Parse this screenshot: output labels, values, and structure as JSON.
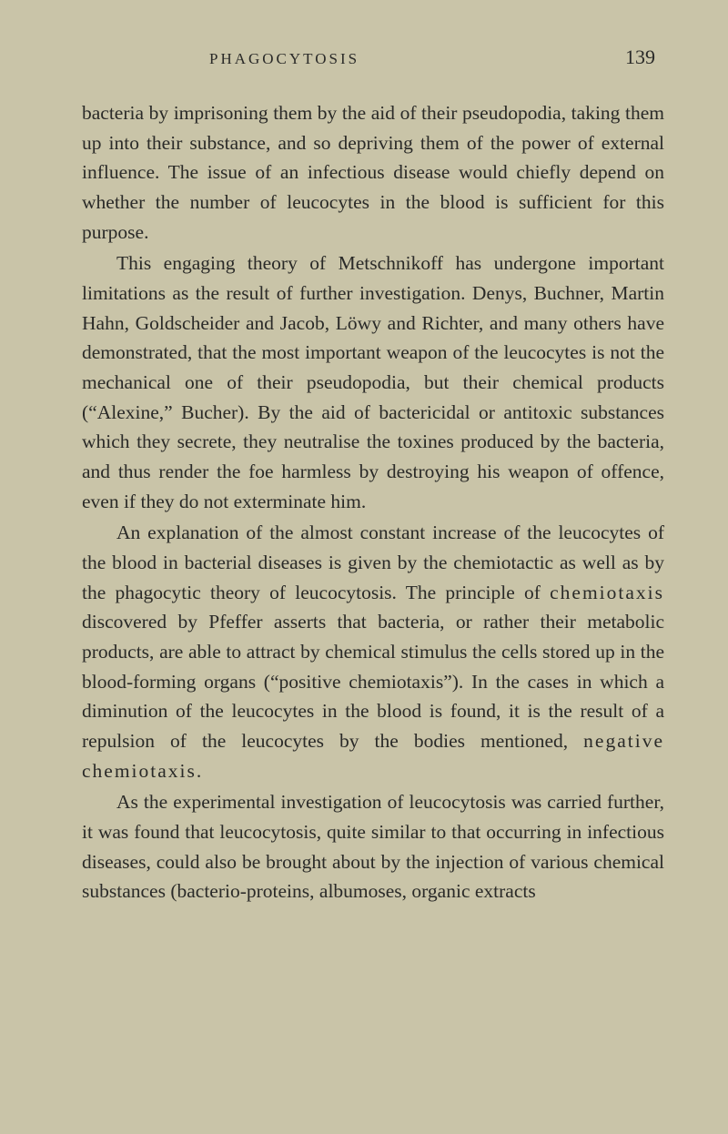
{
  "page": {
    "running_head": "PHAGOCYTOSIS",
    "page_number": "139",
    "paragraphs": [
      {
        "indent": false,
        "text": "bacteria by imprisoning them by the aid of their pseudo­podia, taking them up into their substance, and so depriving them of the power of external influence. The issue of an infectious disease would chiefly depend on whether the number of leucocytes in the blood is sufficient for this purpose."
      },
      {
        "indent": true,
        "text": "This engaging theory of Metschnikoff has undergone important limitations as the result of further investigation. Denys, Buchner, Martin Hahn, Goldscheider and Jacob, Löwy and Richter, and many others have demonstrated, that the most important weapon of the leucocytes is not the mechanical one of their pseudopodia, but their chemical products (“Alexine,” Bucher). By the aid of bactericidal or antitoxic substances which they secrete, they neutralise the toxines produced by the bacteria, and thus render the foe harmless by destroying his weapon of offence, even if they do not exterminate him."
      },
      {
        "indent": true,
        "html": "An explanation of the almost constant increase of the leucocytes of the blood in bacterial diseases is given by the chemiotactic as well as by the phagocytic theory of leucocytosis. The principle of <span class=\"spaced\">chemiotaxis</span> discovered by Pfeffer asserts that bacteria, or rather their metabolic products, are able to attract by chemical stimulus the cells stored up in the blood-forming organs (“positive chemiotaxis”). In the cases in which a diminution of the leucocytes in the blood is found, it is the result of a repulsion of the leucocytes by the bodies mentioned, <span class=\"spaced\">negative chemiotaxis</span>."
      },
      {
        "indent": true,
        "text": "As the experimental investigation of leucocytosis was carried further, it was found that leucocytosis, quite similar to that occurring in infectious diseases, could also be brought about by the injection of various chemical substances (bacterio-proteins, albumoses, organic extracts"
      }
    ]
  },
  "style": {
    "background_color": "#c9c4a8",
    "text_color": "#2a2a28",
    "body_fontsize": 21.5,
    "line_height": 1.52,
    "running_head_fontsize": 17,
    "page_num_fontsize": 22
  }
}
